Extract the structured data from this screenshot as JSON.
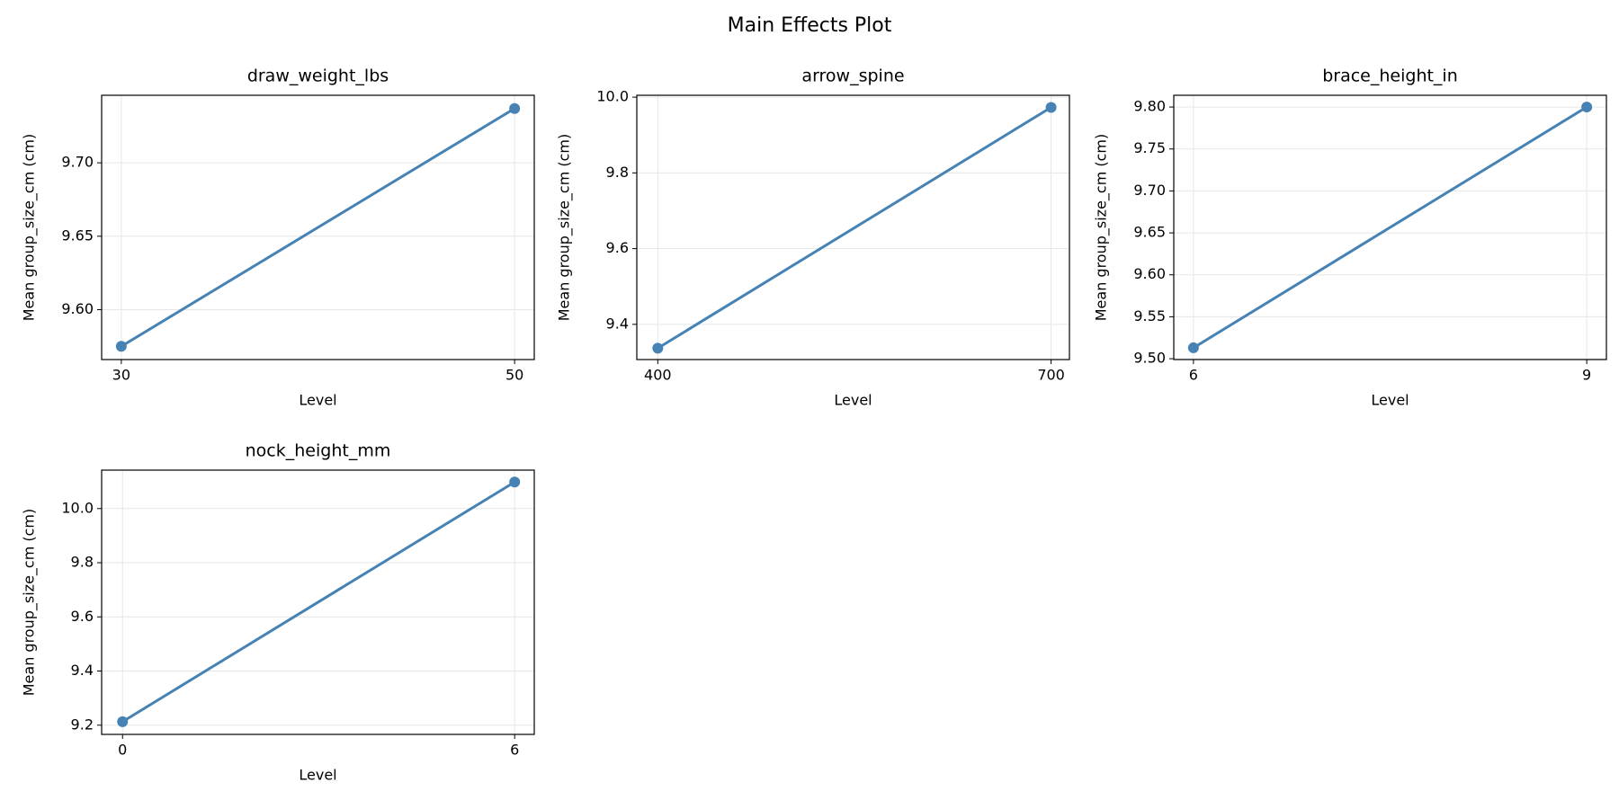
{
  "title": "Main Effects Plot",
  "chart_data": [
    {
      "type": "line",
      "title": "draw_weight_lbs",
      "xlabel": "Level",
      "ylabel": "Mean group_size_cm (cm)",
      "x": [
        30,
        50
      ],
      "values": [
        9.575,
        9.737
      ],
      "color": "#4682b4",
      "marker": true,
      "grid": true,
      "xlim": [
        29,
        51
      ],
      "xticks": [
        30,
        50
      ],
      "ylim": [
        9.566,
        9.746
      ],
      "yticks": [
        {
          "value": 9.6,
          "label": "9.60"
        },
        {
          "value": 9.65,
          "label": "9.65"
        },
        {
          "value": 9.7,
          "label": "9.70"
        }
      ]
    },
    {
      "type": "line",
      "title": "arrow_spine",
      "xlabel": "Level",
      "ylabel": "Mean group_size_cm (cm)",
      "x": [
        400,
        700
      ],
      "values": [
        9.337,
        9.973
      ],
      "color": "#4682b4",
      "marker": true,
      "grid": true,
      "xlim": [
        384,
        714
      ],
      "xticks": [
        400,
        700
      ],
      "ylim": [
        9.307,
        10.005
      ],
      "yticks": [
        9.4,
        9.6,
        9.8,
        {
          "value": 10.0,
          "label": "10.0"
        }
      ]
    },
    {
      "type": "line",
      "title": "brace_height_in",
      "xlabel": "Level",
      "ylabel": "Mean group_size_cm (cm)",
      "x": [
        6,
        9
      ],
      "values": [
        9.513,
        9.8
      ],
      "color": "#4682b4",
      "marker": true,
      "grid": true,
      "xlim": [
        5.85,
        9.15
      ],
      "xticks": [
        6,
        9
      ],
      "ylim": [
        9.499,
        9.814
      ],
      "yticks": [
        {
          "value": 9.5,
          "label": "9.50"
        },
        {
          "value": 9.55,
          "label": "9.55"
        },
        {
          "value": 9.6,
          "label": "9.60"
        },
        {
          "value": 9.65,
          "label": "9.65"
        },
        {
          "value": 9.7,
          "label": "9.70"
        },
        {
          "value": 9.75,
          "label": "9.75"
        },
        {
          "value": 9.8,
          "label": "9.80"
        }
      ]
    },
    {
      "type": "line",
      "title": "nock_height_mm",
      "xlabel": "Level",
      "ylabel": "Mean group_size_cm (cm)",
      "x": [
        0,
        6
      ],
      "values": [
        9.213,
        10.098
      ],
      "color": "#4682b4",
      "marker": true,
      "grid": true,
      "xlim": [
        -0.32,
        6.3
      ],
      "xticks": [
        0,
        6
      ],
      "ylim": [
        9.166,
        10.142
      ],
      "yticks": [
        9.2,
        9.4,
        9.6,
        9.8,
        {
          "value": 10.0,
          "label": "10.0"
        }
      ]
    }
  ]
}
